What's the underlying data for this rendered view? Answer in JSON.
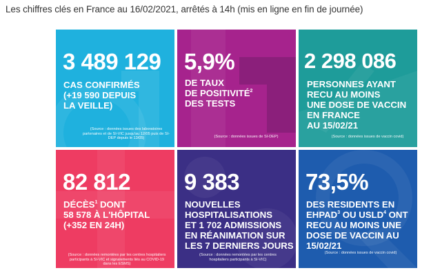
{
  "header": {
    "title": "Les chiffres clés en France au 16/02/2021, arrêtés à 14h (mis en ligne en fin de journée)"
  },
  "tiles": [
    {
      "id": "cas-confirmes",
      "value": "3 489 129",
      "lines": [
        "CAS CONFIRMÉS",
        "(+19 590 DEPUIS",
        "LA VEILLE)"
      ],
      "source": "(Source : données issues des laboratoires partenaires et de SI-VIC jusqu'au 12/05 puis de SI-DEP depuis le 13/05)",
      "color": "#1fb1de"
    },
    {
      "id": "taux-positivite",
      "value": "5,9%",
      "lines": [
        "DE TAUX",
        "DE POSITIVITÉ",
        "DES TESTS"
      ],
      "sup": "2",
      "source": "(Source : données issues de SI-DEP)",
      "color": "#a6238d"
    },
    {
      "id": "vaccines",
      "value": "2 298 086",
      "lines": [
        "PERSONNES AYANT",
        "RECU AU MOINS",
        "UNE DOSE DE VACCIN",
        "EN FRANCE",
        "AU 15/02/21"
      ],
      "source": "(Source : données issues de vaccin covid)",
      "color": "#1e9c9a"
    },
    {
      "id": "deces",
      "value": "82 812",
      "lines": [
        "DÉCÈS",
        "58 578 À L'HÔPITAL",
        "(+352 EN 24H)"
      ],
      "line0_suffix": " DONT",
      "sup": "1",
      "source": "(Source : données remontées par les centres hospitaliers participants à SI-VIC et signalements liés au COVID-19 dans les ESMS)",
      "color": "#ee3c62"
    },
    {
      "id": "hospitalisations",
      "value": "9 383",
      "lines": [
        "NOUVELLES",
        "HOSPITALISATIONS",
        "ET 1 702 ADMISSIONS",
        "EN RÉANIMATION SUR",
        "LES 7 DERNIERS JOURS"
      ],
      "source": "(Source : données remontées par les centres hospitaliers participants à SI-VIC)",
      "color": "#3b2f85"
    },
    {
      "id": "residents-ehpad",
      "value": "73,5%",
      "lines": [
        "DES RESIDENTS EN",
        "EHPAD",
        "RECU AU MOINS UNE",
        "DOSE DE VACCIN AU",
        "15/02/21"
      ],
      "line1_mid": " OU USLD",
      "line1_end": " ONT",
      "sup_a": "3",
      "sup_b": "4",
      "source": "(Source : données issues de vaccin covid)",
      "color": "#1e5cae"
    }
  ]
}
